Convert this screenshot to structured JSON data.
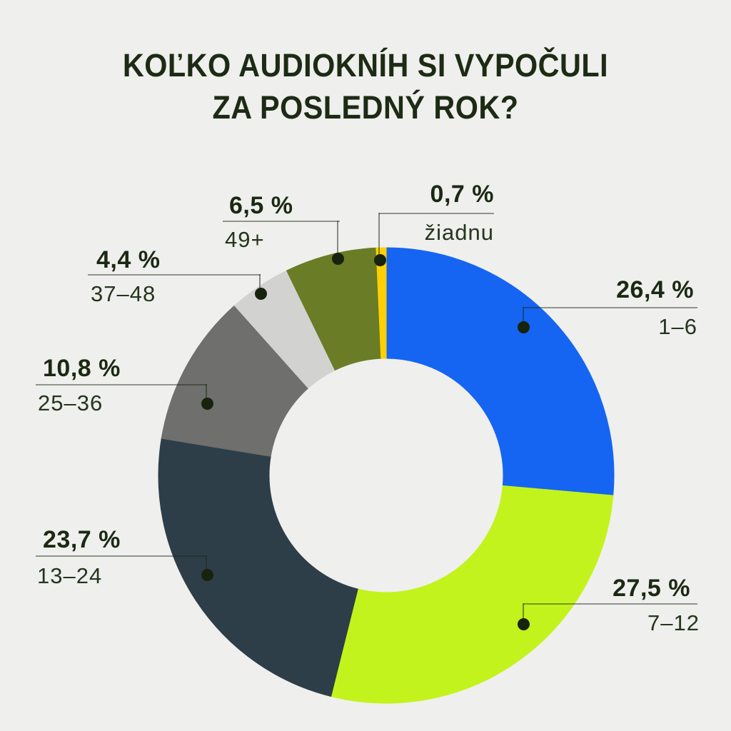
{
  "page": {
    "background": "#efefee"
  },
  "title": {
    "line1": "KOĽKO AUDIOKNÍH SI VYPOČULI",
    "line2": "ZA POSLEDNÝ ROK?",
    "color": "#1d2b14"
  },
  "chart_data": {
    "type": "pie",
    "variant": "donut",
    "title": "KOĽKO AUDIOKNÍH SI VYPOČULI ZA POSLEDNÝ ROK?",
    "unit": "%",
    "decimal_separator": ",",
    "start_angle_deg": 0,
    "direction": "clockwise",
    "legend_position": "callouts-around-donut",
    "order_clockwise_from_top": [
      "1–6",
      "7–12",
      "13–24",
      "25–36",
      "37–48",
      "49+",
      "žiadnu"
    ],
    "segments": [
      {
        "name": "1-6",
        "range": "1–6",
        "value": 26.4,
        "pct_label": "26,4 %",
        "color": "#1565f2"
      },
      {
        "name": "7-12",
        "range": "7–12",
        "value": 27.5,
        "pct_label": "27,5 %",
        "color": "#c3f31c"
      },
      {
        "name": "13-24",
        "range": "13–24",
        "value": 23.7,
        "pct_label": "23,7 %",
        "color": "#2e3e48"
      },
      {
        "name": "25-36",
        "range": "25–36",
        "value": 10.8,
        "pct_label": "10,8 %",
        "color": "#6f6f6d"
      },
      {
        "name": "37-48",
        "range": "37–48",
        "value": 4.4,
        "pct_label": "4,4 %",
        "color": "#d2d3d1"
      },
      {
        "name": "49plus",
        "range": "49+",
        "value": 6.5,
        "pct_label": "6,5 %",
        "color": "#6b7c26"
      },
      {
        "name": "ziadnu",
        "range": "žiadnu",
        "value": 0.7,
        "pct_label": "0,7 %",
        "color": "#fdd005"
      }
    ],
    "callout_style": {
      "dot_color": "#17230c",
      "line_color": "rgba(27,41,18,0.45)",
      "pct_text_color": "#1b2912",
      "range_text_color": "#26351b"
    }
  }
}
